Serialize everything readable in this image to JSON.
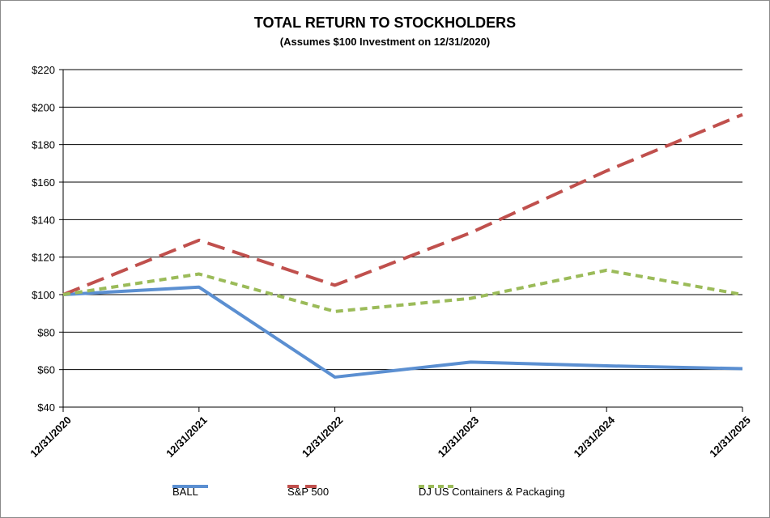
{
  "chart_data": {
    "type": "line",
    "title": "TOTAL RETURN TO STOCKHOLDERS",
    "subtitle": "(Assumes $100 Investment on 12/31/2020)",
    "categories": [
      "12/31/2020",
      "12/31/2021",
      "12/31/2022",
      "12/31/2023",
      "12/31/2024",
      "12/31/2025"
    ],
    "ylim": [
      40,
      220
    ],
    "yticks": [
      40,
      60,
      80,
      100,
      120,
      140,
      160,
      180,
      200,
      220
    ],
    "ytick_labels": [
      "$40",
      "$60",
      "$80",
      "$100",
      "$120",
      "$140",
      "$160",
      "$180",
      "$200",
      "$220"
    ],
    "grid": true,
    "legend_position": "bottom",
    "series": [
      {
        "name": "BALL",
        "values": [
          100,
          104,
          56,
          64,
          62,
          60.5
        ],
        "color": "#5B8FD1",
        "style": "solid"
      },
      {
        "name": "S&P 500",
        "values": [
          100,
          129,
          105,
          133,
          166,
          196
        ],
        "color": "#C0504D",
        "style": "long-dash"
      },
      {
        "name": "DJ US Containers & Packaging",
        "values": [
          100,
          111,
          91,
          98,
          113,
          100
        ],
        "color": "#9BBB59",
        "style": "short-dash"
      }
    ]
  }
}
